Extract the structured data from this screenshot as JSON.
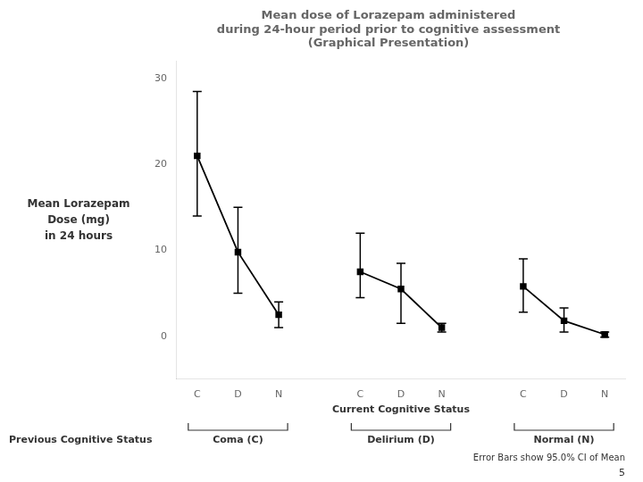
{
  "chart_data": {
    "type": "line",
    "title": "Mean dose of Lorazepam administered\nduring 24-hour period prior to cognitive assessment\n(Graphical Presentation)",
    "y_label": [
      "Mean Lorazepam",
      "Dose (mg)",
      "in 24 hours"
    ],
    "x_label": "Current Cognitive Status",
    "group_axis_label": "Previous Cognitive Status",
    "group_labels": [
      "Coma (C)",
      "Delirium (D)",
      "Normal (N)"
    ],
    "categories": [
      "C",
      "D",
      "N",
      null,
      "C",
      "D",
      "N",
      null,
      "C",
      "D",
      "N"
    ],
    "values": [
      21.0,
      9.8,
      2.5,
      null,
      7.5,
      5.5,
      1.0,
      null,
      5.8,
      1.8,
      0.2
    ],
    "error_upper": [
      7.5,
      5.2,
      1.5,
      null,
      4.5,
      3.0,
      0.5,
      null,
      3.2,
      1.5,
      0.3
    ],
    "error_lower": [
      7.0,
      4.8,
      1.5,
      null,
      3.0,
      4.0,
      0.5,
      null,
      3.0,
      1.3,
      0.3
    ],
    "color": "#000000",
    "marker": "square",
    "ylim": [
      -5,
      32
    ],
    "yticks": [
      0,
      10,
      20,
      30
    ],
    "grid": false,
    "footnote": "Error Bars show 95.0% CI of Mean",
    "page_number": "5"
  }
}
